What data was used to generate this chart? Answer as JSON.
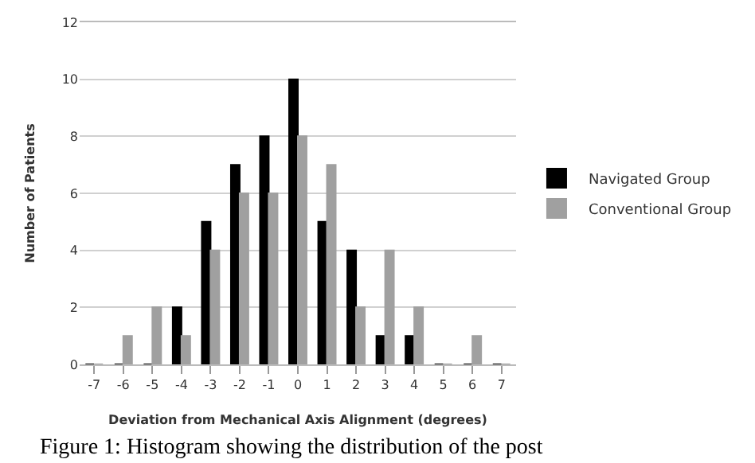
{
  "chart_data": {
    "type": "bar",
    "xlabel": "Deviation from Mechanical Axis Alignment (degrees)",
    "ylabel": "Number of Patients",
    "categories": [
      "-7",
      "-6",
      "-5",
      "-4",
      "-3",
      "-2",
      "-1",
      "0",
      "1",
      "2",
      "3",
      "4",
      "5",
      "6",
      "7"
    ],
    "series": [
      {
        "name": "Navigated Group",
        "color": "#000000",
        "values": [
          0,
          0,
          0,
          2,
          5,
          7,
          8,
          10,
          5,
          4,
          1,
          1,
          0,
          0,
          0
        ]
      },
      {
        "name": "Conventional Group",
        "color": "#a0a0a0",
        "values": [
          0,
          1,
          2,
          1,
          4,
          6,
          6,
          8,
          7,
          2,
          4,
          2,
          0,
          1,
          0
        ]
      }
    ],
    "ylim": [
      0,
      12
    ],
    "yticks": [
      0,
      2,
      4,
      6,
      8,
      10,
      12
    ],
    "grid": "y",
    "legend": "right",
    "annotations": [
      "Figure 1: Histogram showing the distribution of the post"
    ]
  }
}
